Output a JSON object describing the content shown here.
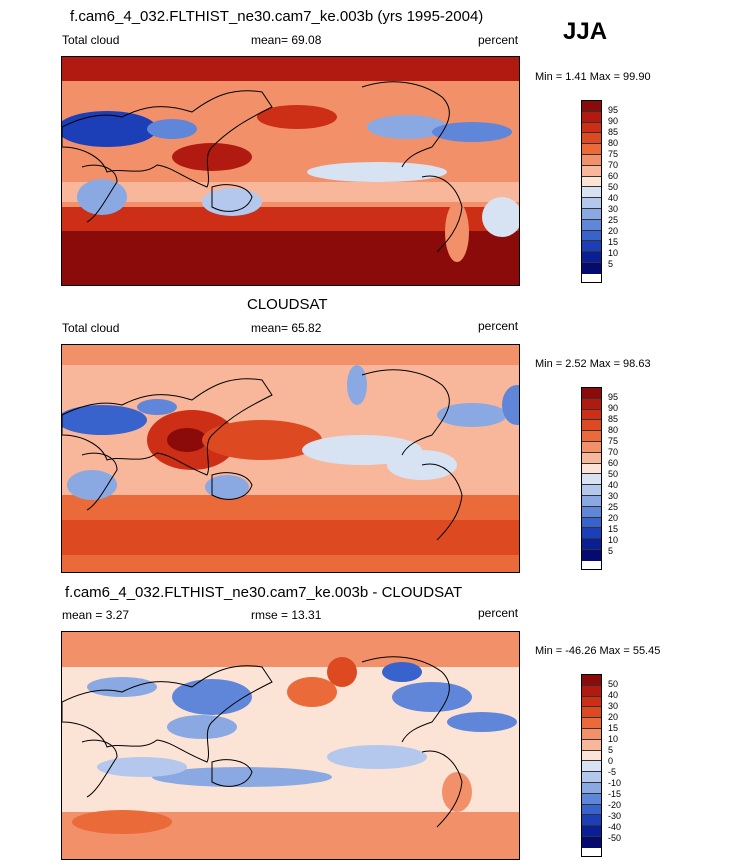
{
  "season": "JJA",
  "panels": [
    {
      "title": "f.cam6_4_032.FLTHIST_ne30.cam7_ke.003b (yrs 1995-2004)",
      "left_label": "Total cloud",
      "mid_label": "mean=  69.08",
      "right_label": "percent",
      "minmax": "Min =   1.41 Max =  99.90",
      "levels": [
        "95",
        "90",
        "85",
        "80",
        "75",
        "70",
        "60",
        "50",
        "40",
        "30",
        "25",
        "20",
        "15",
        "10",
        "5"
      ]
    },
    {
      "title": "CLOUDSAT",
      "left_label": "Total cloud",
      "mid_label": "mean=  65.82",
      "right_label": "percent",
      "minmax": "Min =   2.52 Max =  98.63",
      "levels": [
        "95",
        "90",
        "85",
        "80",
        "75",
        "70",
        "60",
        "50",
        "40",
        "30",
        "25",
        "20",
        "15",
        "10",
        "5"
      ]
    },
    {
      "title": "f.cam6_4_032.FLTHIST_ne30.cam7_ke.003b - CLOUDSAT",
      "left_label": "mean =   3.27",
      "mid_label": "rmse =  13.31",
      "right_label": "percent",
      "minmax": "Min = -46.26 Max =  55.45",
      "levels": [
        "50",
        "40",
        "30",
        "20",
        "15",
        "10",
        "5",
        "0",
        "-5",
        "-10",
        "-15",
        "-20",
        "-30",
        "-40",
        "-50"
      ]
    }
  ],
  "colors": {
    "scale": [
      "#8b0b0b",
      "#b01a10",
      "#cc2e16",
      "#dd4a22",
      "#ea6a3a",
      "#f2906a",
      "#f8b79b",
      "#fbe3d6",
      "#d7e3f3",
      "#b3c8ec",
      "#8aa9e3",
      "#5f86d8",
      "#3862cc",
      "#1c3fb8",
      "#0b1f94",
      "#040a70"
    ],
    "land": "#000000"
  }
}
